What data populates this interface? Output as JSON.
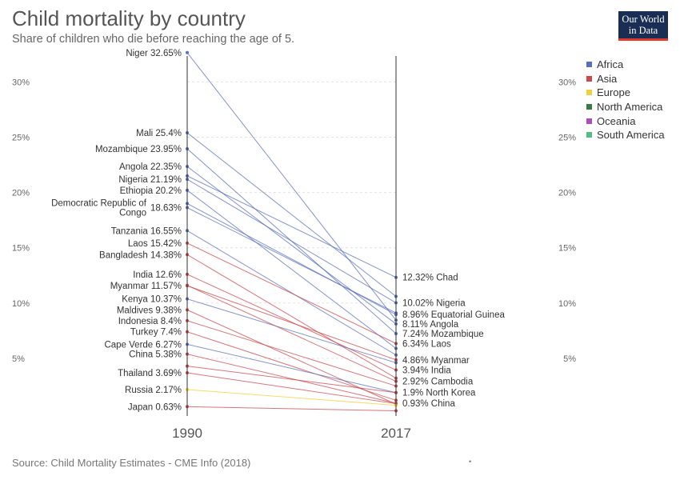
{
  "header": {
    "title": "Child mortality by country",
    "subtitle": "Share of children who die before reaching the age of 5."
  },
  "logo": {
    "line1": "Our World",
    "line2": "in Data"
  },
  "footer": {
    "source": "Source: Child Mortality Estimates - CME Info (2018)",
    "dot": "•"
  },
  "legend": [
    {
      "name": "Africa",
      "color": "#5a6fba"
    },
    {
      "name": "Asia",
      "color": "#c84a4e"
    },
    {
      "name": "Europe",
      "color": "#f2d03b"
    },
    {
      "name": "North America",
      "color": "#3c7a44"
    },
    {
      "name": "Oceania",
      "color": "#a951b5"
    },
    {
      "name": "South America",
      "color": "#58bb84"
    }
  ],
  "chart_data": {
    "type": "slope",
    "title": "Child mortality by country",
    "subtitle": "Share of children who die before reaching the age of 5.",
    "x": [
      "1990",
      "2017"
    ],
    "ylim": [
      0,
      33
    ],
    "y_ticks": [
      {
        "value": 5,
        "label": "5%"
      },
      {
        "value": 10,
        "label": "10%"
      },
      {
        "value": 15,
        "label": "15%"
      },
      {
        "value": 20,
        "label": "20%"
      },
      {
        "value": 25,
        "label": "25%"
      },
      {
        "value": 30,
        "label": "30%"
      }
    ],
    "labels_1990": [
      {
        "label": "Niger 32.65%",
        "value": 32.65
      },
      {
        "label": "Mali 25.4%",
        "value": 25.4
      },
      {
        "label": "Mozambique 23.95%",
        "value": 23.95
      },
      {
        "label": "Angola 22.35%",
        "value": 22.35
      },
      {
        "label": "Nigeria 21.19%",
        "value": 21.19
      },
      {
        "label": "Ethiopia 20.2%",
        "value": 20.2
      },
      {
        "label": "Democratic Republic of Congo 18.63%",
        "lines": [
          "Democratic Republic of",
          "Congo"
        ],
        "pct": "18.63%",
        "value": 18.63
      },
      {
        "label": "Tanzania 16.55%",
        "value": 16.55
      },
      {
        "label": "Laos 15.42%",
        "value": 15.42
      },
      {
        "label": "Bangladesh 14.38%",
        "value": 14.38
      },
      {
        "label": "India 12.6%",
        "value": 12.6
      },
      {
        "label": "Myanmar 11.57%",
        "value": 11.57
      },
      {
        "label": "Kenya 10.37%",
        "value": 10.37
      },
      {
        "label": "Maldives 9.38%",
        "value": 9.38
      },
      {
        "label": "Indonesia 8.4%",
        "value": 8.4
      },
      {
        "label": "Turkey 7.4%",
        "value": 7.4
      },
      {
        "label": "Cape Verde 6.27%",
        "value": 6.27
      },
      {
        "label": "China 5.38%",
        "value": 5.38
      },
      {
        "label": "Thailand 3.69%",
        "value": 3.69
      },
      {
        "label": "Russia 2.17%",
        "value": 2.17
      },
      {
        "label": "Japan 0.63%",
        "value": 0.63
      }
    ],
    "labels_2017": [
      {
        "label": "12.32% Chad",
        "value": 12.32
      },
      {
        "label": "10.02% Nigeria",
        "value": 10.02
      },
      {
        "label": "8.96% Equatorial Guinea",
        "value": 8.96
      },
      {
        "label": "8.11% Angola",
        "value": 8.11
      },
      {
        "label": "7.24% Mozambique",
        "value": 7.24
      },
      {
        "label": "6.34% Laos",
        "value": 6.34
      },
      {
        "label": "4.86% Myanmar",
        "value": 4.86
      },
      {
        "label": "3.94% India",
        "value": 3.94
      },
      {
        "label": "2.92% Cambodia",
        "value": 2.92
      },
      {
        "label": "1.9% North Korea",
        "value": 1.9
      },
      {
        "label": "0.93% China",
        "value": 0.93
      }
    ],
    "series": [
      {
        "name": "Niger",
        "region": "Africa",
        "values": [
          32.65,
          8.45
        ]
      },
      {
        "name": "Mali",
        "region": "Africa",
        "values": [
          25.4,
          10.6
        ]
      },
      {
        "name": "Mozambique",
        "region": "Africa",
        "values": [
          23.95,
          7.24
        ]
      },
      {
        "name": "Angola",
        "region": "Africa",
        "values": [
          22.35,
          8.11
        ]
      },
      {
        "name": "Nigeria",
        "region": "Africa",
        "values": [
          21.19,
          10.02
        ]
      },
      {
        "name": "Ethiopia",
        "region": "Africa",
        "values": [
          20.2,
          5.9
        ]
      },
      {
        "name": "Democratic Republic of Congo",
        "region": "Africa",
        "values": [
          18.63,
          9.1
        ]
      },
      {
        "name": "Tanzania",
        "region": "Africa",
        "values": [
          16.55,
          5.3
        ]
      },
      {
        "name": "Laos",
        "region": "Asia",
        "values": [
          15.42,
          6.34
        ]
      },
      {
        "name": "Bangladesh",
        "region": "Asia",
        "values": [
          14.38,
          3.2
        ]
      },
      {
        "name": "India",
        "region": "Asia",
        "values": [
          12.6,
          3.94
        ]
      },
      {
        "name": "Myanmar",
        "region": "Asia",
        "values": [
          11.57,
          4.86
        ]
      },
      {
        "name": "Kenya",
        "region": "Africa",
        "values": [
          10.37,
          4.6
        ]
      },
      {
        "name": "Maldives",
        "region": "Asia",
        "values": [
          9.38,
          0.85
        ]
      },
      {
        "name": "Indonesia",
        "region": "Asia",
        "values": [
          8.4,
          2.5
        ]
      },
      {
        "name": "Turkey",
        "region": "Asia",
        "values": [
          7.4,
          1.2
        ]
      },
      {
        "name": "Cape Verde",
        "region": "Africa",
        "values": [
          6.27,
          1.9
        ]
      },
      {
        "name": "China",
        "region": "Asia",
        "values": [
          5.38,
          0.93
        ]
      },
      {
        "name": "Thailand",
        "region": "Asia",
        "values": [
          3.69,
          0.9
        ]
      },
      {
        "name": "Russia",
        "region": "Europe",
        "values": [
          2.17,
          0.75
        ]
      },
      {
        "name": "Japan",
        "region": "Asia",
        "values": [
          0.63,
          0.25
        ]
      },
      {
        "name": "Chad",
        "region": "Africa",
        "values": [
          21.5,
          12.32
        ]
      },
      {
        "name": "Equatorial Guinea",
        "region": "Africa",
        "values": [
          19.0,
          8.96
        ]
      },
      {
        "name": "Cambodia",
        "region": "Asia",
        "values": [
          11.6,
          2.92
        ]
      },
      {
        "name": "North Korea",
        "region": "Asia",
        "values": [
          4.3,
          1.9
        ]
      }
    ]
  }
}
